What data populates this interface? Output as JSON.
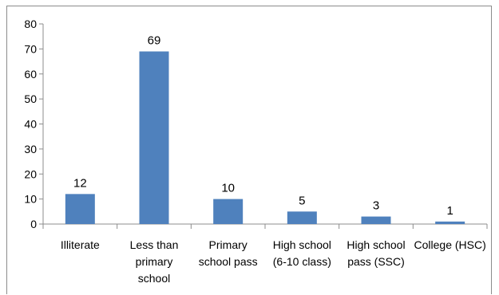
{
  "chart_data": {
    "type": "bar",
    "categories": [
      [
        "Illiterate"
      ],
      [
        "Less than",
        "primary",
        "school"
      ],
      [
        "Primary",
        "school pass"
      ],
      [
        "High school",
        "(6-10 class)"
      ],
      [
        "High school",
        "pass (SSC)"
      ],
      [
        "College (HSC)"
      ]
    ],
    "values": [
      12,
      69,
      10,
      5,
      3,
      1
    ],
    "data_labels": [
      "12",
      "69",
      "10",
      "5",
      "3",
      "1"
    ],
    "y_ticks": [
      "0",
      "10",
      "20",
      "30",
      "40",
      "50",
      "60",
      "70",
      "80"
    ],
    "ylim": [
      0,
      80
    ],
    "title": "",
    "xlabel": "",
    "ylabel": "",
    "grid": false,
    "legend": "none",
    "bar_color": "#4f81bd",
    "axis_color": "#8c8c8c"
  }
}
